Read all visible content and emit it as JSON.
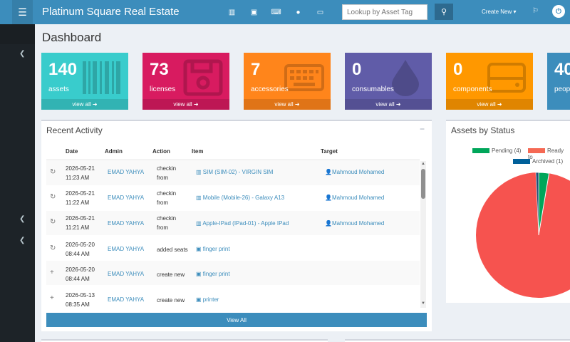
{
  "header": {
    "brand": "Platinum Square Real Estate",
    "search_placeholder": "Lookup by Asset Tag",
    "create_new": "Create New ▾"
  },
  "page": {
    "title": "Dashboard"
  },
  "stats": [
    {
      "count": "140",
      "label": "assets",
      "footer": "view all ➜",
      "color": "#39cccc"
    },
    {
      "count": "73",
      "label": "licenses",
      "footer": "view all ➜",
      "color": "#d81b60"
    },
    {
      "count": "7",
      "label": "accessories",
      "footer": "view all ➜",
      "color": "#ff851b"
    },
    {
      "count": "0",
      "label": "consumables",
      "footer": "view all ➜",
      "color": "#605ca8"
    },
    {
      "count": "0",
      "label": "components",
      "footer": "view all ➜",
      "color": "#ff9800"
    },
    {
      "count": "40",
      "label": "peop",
      "footer": "",
      "color": "#3c8dbc"
    }
  ],
  "recent_activity": {
    "title": "Recent Activity",
    "collapse": "−",
    "headers": {
      "date": "Date",
      "admin": "Admin",
      "action": "Action",
      "item": "Item",
      "target": "Target"
    },
    "rows": [
      {
        "icon": "↻",
        "date": "2026-05-21",
        "time": "11:23 AM",
        "admin": "EMAD YAHYA",
        "action": "checkin",
        "action2": "from",
        "item": "SIM (SIM-02) - VIRGIN SIM",
        "target": "Mahmoud Mohamed"
      },
      {
        "icon": "↻",
        "date": "2026-05-21",
        "time": "11:22 AM",
        "admin": "EMAD YAHYA",
        "action": "checkin",
        "action2": "from",
        "item": "Mobile (Mobile-26) - Galaxy A13",
        "target": "Mahmoud Mohamed"
      },
      {
        "icon": "↻",
        "date": "2026-05-21",
        "time": "11:21 AM",
        "admin": "EMAD YAHYA",
        "action": "checkin",
        "action2": "from",
        "item": "Apple-IPad (IPad-01) - Apple IPad",
        "target": "Mahmoud Mohamed"
      },
      {
        "icon": "↻",
        "date": "2026-05-20",
        "time": "08:44 AM",
        "admin": "EMAD YAHYA",
        "action": "added seats",
        "action2": "",
        "item": "finger print",
        "target": ""
      },
      {
        "icon": "+",
        "date": "2026-05-20",
        "time": "08:44 AM",
        "admin": "EMAD YAHYA",
        "action": "create new",
        "action2": "",
        "item": "finger print",
        "target": ""
      },
      {
        "icon": "+",
        "date": "2026-05-13",
        "time": "08:35 AM",
        "admin": "EMAD YAHYA",
        "action": "create new",
        "action2": "",
        "item": "printer",
        "target": ""
      }
    ],
    "view_all": "View All"
  },
  "assets_by_status": {
    "title": "Assets by Status",
    "legend": [
      {
        "label": "Pending (4)",
        "color": "#00a65a"
      },
      {
        "label": "Ready to",
        "color": "#f56954"
      },
      {
        "label": "Archived (1)",
        "color": "#00609a"
      }
    ],
    "colors": {
      "ready": "#f6534f",
      "pending": "#00a65a",
      "archived": "#1f4e79"
    }
  }
}
